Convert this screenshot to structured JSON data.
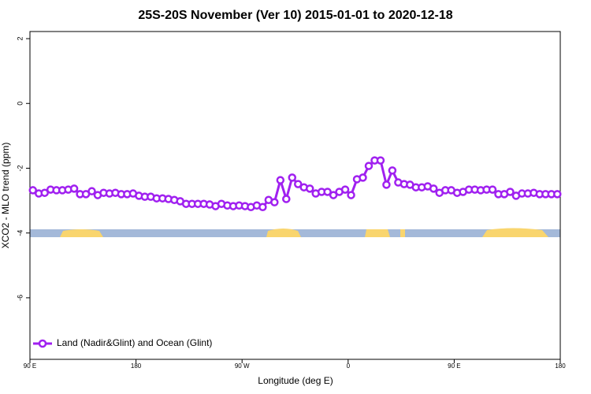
{
  "chart_data": {
    "type": "line",
    "title": "25S-20S November (Ver 10)   2015-01-01 to 2020-12-18",
    "xlabel": "Longitude (deg E)",
    "ylabel": "XCO2 - MLO trend (ppm)",
    "x": [
      92.5,
      97.5,
      102.5,
      107.5,
      112.5,
      117.5,
      122.5,
      127.5,
      132.5,
      137.5,
      142.5,
      147.5,
      152.5,
      157.5,
      162.5,
      167.5,
      172.5,
      177.5,
      182.5,
      187.5,
      192.5,
      197.5,
      202.5,
      207.5,
      212.5,
      217.5,
      222.5,
      227.5,
      232.5,
      237.5,
      242.5,
      247.5,
      252.5,
      257.5,
      262.5,
      267.5,
      272.5,
      277.5,
      282.5,
      287.5,
      292.5,
      297.5,
      302.5,
      307.5,
      312.5,
      317.5,
      322.5,
      327.5,
      332.5,
      337.5,
      342.5,
      347.5,
      352.5,
      357.5,
      362.5,
      367.5,
      372.5,
      377.5,
      382.5,
      387.5,
      392.5,
      397.5,
      402.5,
      407.5,
      412.5,
      417.5,
      422.5,
      427.5,
      432.5,
      437.5,
      442.5,
      447.5,
      452.5,
      457.5,
      462.5,
      467.5,
      472.5,
      477.5,
      482.5,
      487.5,
      492.5,
      497.5,
      502.5,
      507.5,
      512.5,
      517.5,
      522.5,
      527.5,
      532.5,
      537.5
    ],
    "series": [
      {
        "name": "Land (Nadir&Glint) and Ocean (Glint)",
        "color": "#a020f0",
        "values": [
          -2.68,
          -2.78,
          -2.76,
          -2.66,
          -2.68,
          -2.68,
          -2.66,
          -2.63,
          -2.8,
          -2.8,
          -2.71,
          -2.83,
          -2.76,
          -2.78,
          -2.76,
          -2.8,
          -2.8,
          -2.78,
          -2.85,
          -2.88,
          -2.88,
          -2.93,
          -2.93,
          -2.95,
          -2.98,
          -3.02,
          -3.1,
          -3.1,
          -3.1,
          -3.1,
          -3.12,
          -3.17,
          -3.1,
          -3.15,
          -3.17,
          -3.15,
          -3.17,
          -3.2,
          -3.15,
          -3.2,
          -2.98,
          -3.05,
          -2.37,
          -2.95,
          -2.29,
          -2.49,
          -2.59,
          -2.63,
          -2.78,
          -2.73,
          -2.73,
          -2.83,
          -2.73,
          -2.66,
          -2.83,
          -2.34,
          -2.29,
          -1.93,
          -1.76,
          -1.76,
          -2.51,
          -2.07,
          -2.44,
          -2.49,
          -2.51,
          -2.59,
          -2.59,
          -2.56,
          -2.63,
          -2.76,
          -2.68,
          -2.68,
          -2.76,
          -2.73,
          -2.66,
          -2.66,
          -2.68,
          -2.66,
          -2.66,
          -2.8,
          -2.8,
          -2.73,
          -2.85,
          -2.78,
          -2.78,
          -2.76,
          -2.8,
          -2.8,
          -2.8,
          -2.8
        ]
      }
    ],
    "xlim": [
      90,
      540
    ],
    "xticks": [
      {
        "value": 90,
        "label": "90 E"
      },
      180,
      {
        "value": 270,
        "label": "90 W"
      },
      {
        "value": 360,
        "label": "0"
      },
      {
        "value": 450,
        "label": "90 E"
      },
      {
        "value": 540,
        "label": "180"
      }
    ],
    "ylim": [
      -7.9,
      2.22
    ],
    "yticks": [
      2,
      0,
      -2,
      -4,
      -6
    ],
    "legend": "bottom-left"
  }
}
